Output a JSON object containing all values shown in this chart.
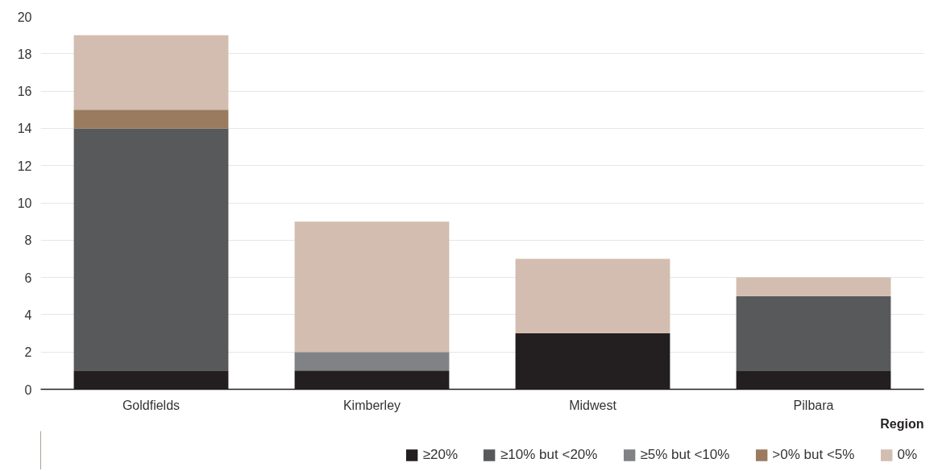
{
  "chart_data": {
    "type": "bar",
    "stacked": true,
    "xlabel": "Region",
    "categories": [
      "Goldfields",
      "Kimberley",
      "Midwest",
      "Pilbara"
    ],
    "series": [
      {
        "name": "≥20%",
        "color": "#231f20",
        "values": [
          1,
          1,
          3,
          1
        ]
      },
      {
        "name": "≥10% but <20%",
        "color": "#58595b",
        "values": [
          13,
          0,
          0,
          4
        ]
      },
      {
        "name": "≥5% but <10%",
        "color": "#808285",
        "values": [
          0,
          1,
          0,
          0
        ]
      },
      {
        "name": ">0% but <5%",
        "color": "#9a7b5f",
        "values": [
          1,
          0,
          0,
          0
        ]
      },
      {
        "name": "0%",
        "color": "#d2bdb0",
        "values": [
          4,
          7,
          4,
          1
        ]
      }
    ],
    "ylim": [
      0,
      20
    ],
    "yticks": [
      0,
      2,
      4,
      6,
      8,
      10,
      12,
      14,
      16,
      18,
      20
    ],
    "grid": "y",
    "legend": "bottom right"
  }
}
